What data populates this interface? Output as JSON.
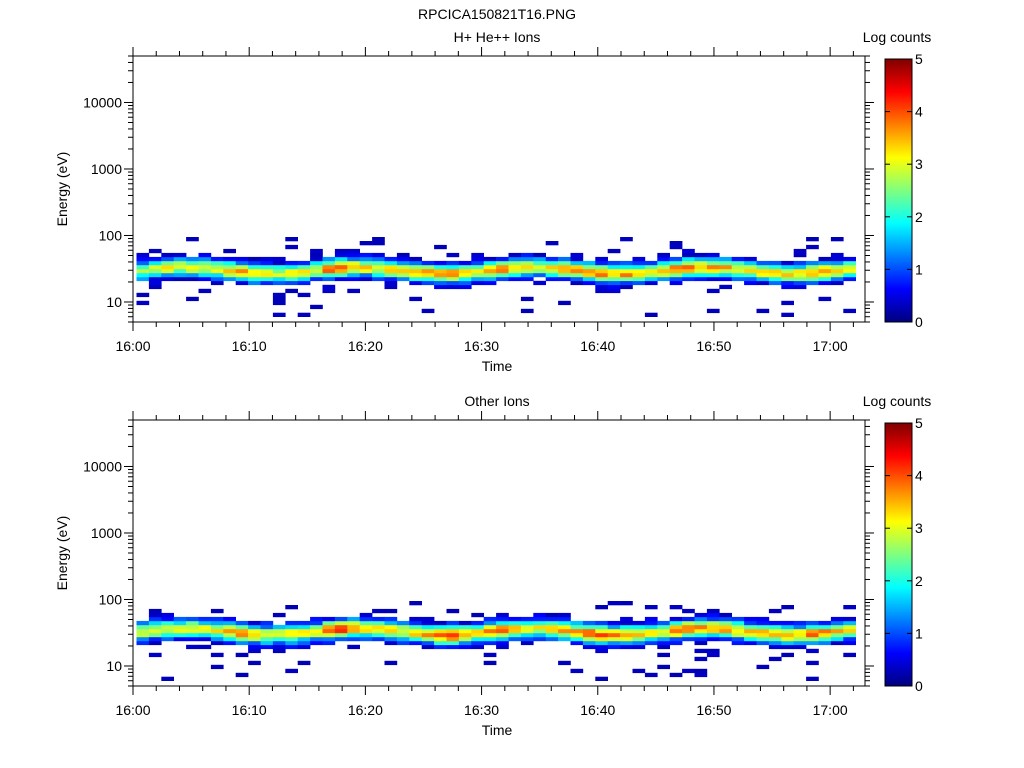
{
  "title": "RPCICA150821T16.PNG",
  "colormap": [
    "#00007f",
    "#0000ff",
    "#007fff",
    "#00ffff",
    "#7fff7f",
    "#ffff00",
    "#ff7f00",
    "#ff0000",
    "#7f0000"
  ],
  "chart_data": [
    {
      "type": "heatmap",
      "title": "H+ He++ Ions",
      "xlabel": "Time",
      "ylabel": "Energy (eV)",
      "yscale": "log",
      "ylim": [
        5,
        50000
      ],
      "xlim": [
        "16:00",
        "17:03"
      ],
      "xticks": [
        "16:00",
        "16:10",
        "16:20",
        "16:30",
        "16:40",
        "16:50",
        "17:00"
      ],
      "yticks": [
        "10",
        "100",
        "1000",
        "10000"
      ],
      "colorbar": {
        "label": "Log counts",
        "range": [
          0,
          5
        ],
        "ticks": [
          "0",
          "1",
          "2",
          "3",
          "4",
          "5"
        ]
      },
      "energy_range_eV": [
        6,
        95
      ],
      "peak_energy_eV": 30,
      "peak_log_counts": [
        2.9,
        3.0,
        3.3,
        3.1,
        3.2,
        3.0,
        3.1,
        3.4,
        3.7,
        3.5,
        3.2,
        3.0,
        3.5,
        3.1,
        3.0,
        3.8,
        4.2,
        3.6,
        3.3,
        3.2,
        3.5,
        3.1,
        3.4,
        3.6,
        3.8,
        3.7,
        3.4,
        3.1,
        3.6,
        3.9,
        3.3,
        3.0,
        3.0,
        3.2,
        3.4,
        3.6,
        3.9,
        3.8,
        3.5,
        3.6,
        3.3,
        3.1,
        3.4,
        3.7,
        3.9,
        3.6,
        3.5,
        3.4,
        3.3,
        3.2,
        3.5,
        3.4,
        3.3,
        3.4,
        3.8,
        3.6,
        3.2,
        3.0
      ]
    },
    {
      "type": "heatmap",
      "title": "Other Ions",
      "xlabel": "Time",
      "ylabel": "Energy (eV)",
      "yscale": "log",
      "ylim": [
        5,
        50000
      ],
      "xlim": [
        "16:00",
        "17:03"
      ],
      "xticks": [
        "16:00",
        "16:10",
        "16:20",
        "16:30",
        "16:40",
        "16:50",
        "17:00"
      ],
      "yticks": [
        "10",
        "100",
        "1000",
        "10000"
      ],
      "colorbar": {
        "label": "Log counts",
        "range": [
          0,
          5
        ],
        "ticks": [
          "0",
          "1",
          "2",
          "3",
          "4",
          "5"
        ]
      },
      "energy_range_eV": [
        6,
        95
      ],
      "peak_energy_eV": 33,
      "peak_log_counts": [
        3.0,
        3.1,
        3.2,
        3.0,
        3.1,
        3.0,
        3.2,
        3.6,
        3.8,
        3.5,
        3.2,
        3.0,
        3.3,
        3.1,
        3.0,
        4.2,
        4.5,
        3.8,
        3.4,
        3.3,
        3.6,
        3.2,
        3.3,
        3.6,
        4.3,
        4.4,
        3.5,
        3.2,
        3.7,
        3.8,
        3.4,
        3.2,
        3.1,
        3.3,
        3.4,
        3.5,
        4.0,
        3.9,
        3.6,
        3.7,
        3.5,
        3.3,
        3.3,
        3.8,
        4.1,
        3.9,
        3.6,
        3.5,
        3.4,
        3.3,
        3.6,
        3.5,
        3.4,
        3.4,
        3.9,
        3.7,
        3.3,
        3.1
      ]
    }
  ]
}
